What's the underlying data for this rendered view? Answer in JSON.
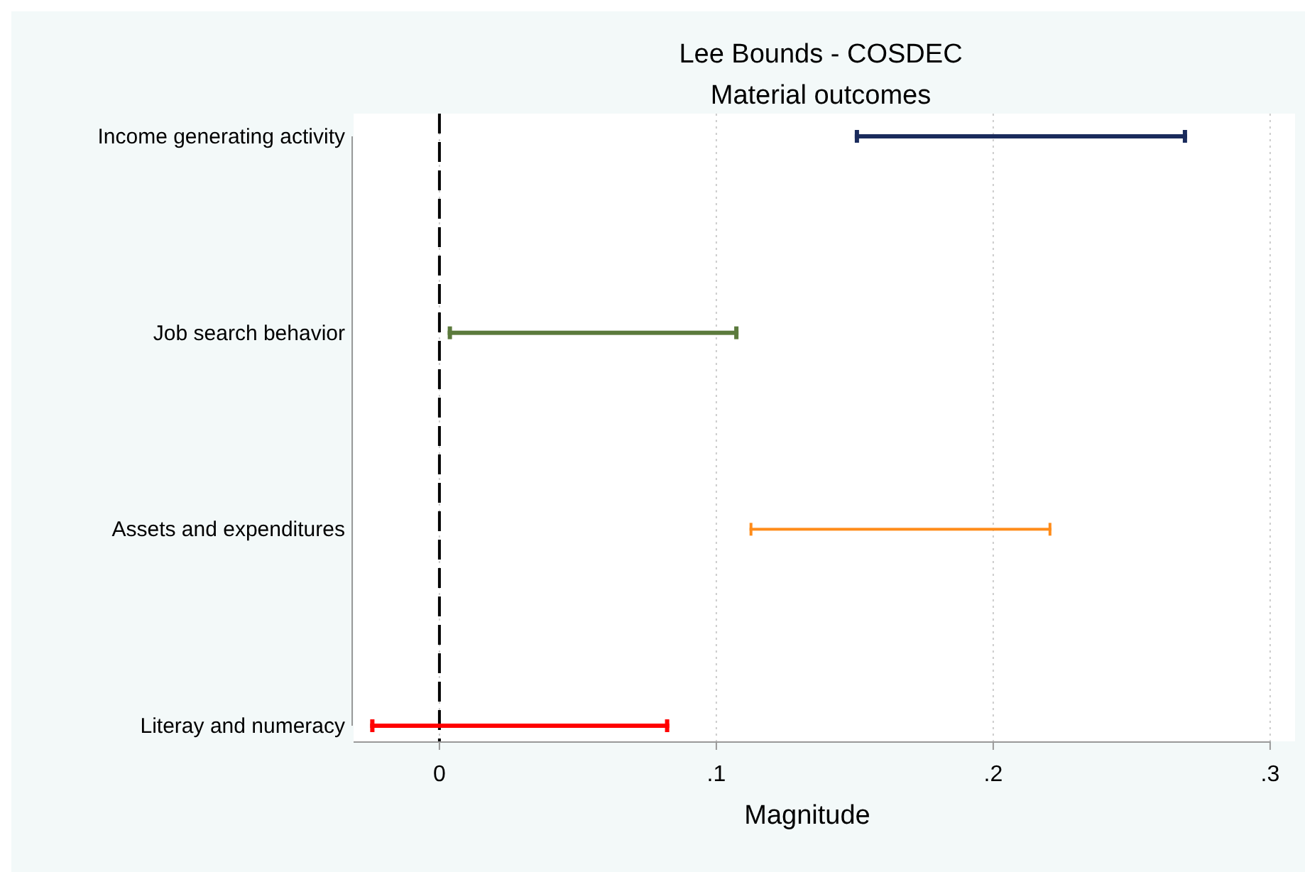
{
  "chart_data": {
    "type": "bar",
    "orientation": "horizontal",
    "title": "Lee Bounds - COSDEC",
    "subtitle": "Material outcomes",
    "xlabel": "Magnitude",
    "categories": [
      "Income generating activity",
      "Job search behavior",
      "Assets and expenditures",
      "Literay and numeracy"
    ],
    "base": [
      0.15,
      0.003,
      0.112,
      -0.025
    ],
    "values": [
      0.12,
      0.105,
      0.109,
      0.108
    ],
    "colors": [
      "#1a2b5c",
      "#5b7a3c",
      "#ff8c1a",
      "#ff0000"
    ],
    "xlim": [
      -0.031,
      0.309
    ],
    "xticks": [
      {
        "value": 0,
        "label": "0"
      },
      {
        "value": 0.1,
        "label": ".1"
      },
      {
        "value": 0.2,
        "label": ".2"
      },
      {
        "value": 0.3,
        "label": ".3"
      }
    ],
    "grid": "x",
    "ref_lines": [
      {
        "axis": "x",
        "value": 0,
        "color": "#000000",
        "line_style": "dashed"
      }
    ]
  }
}
